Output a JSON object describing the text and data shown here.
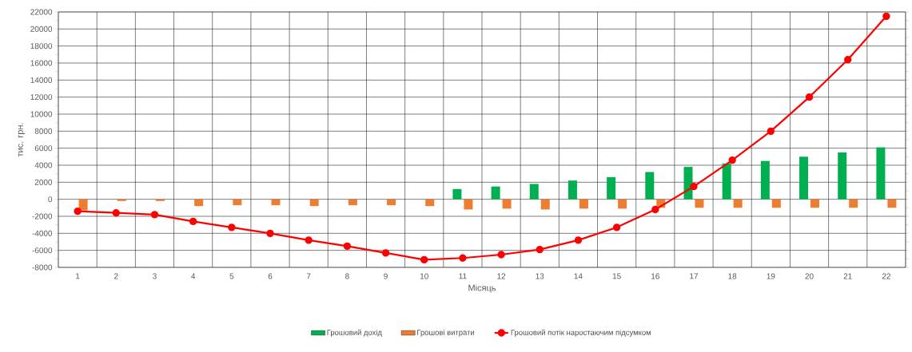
{
  "chart_data": {
    "type": "bar",
    "xlabel": "Місяць",
    "ylabel": "тис. грн.",
    "categories": [
      "1",
      "2",
      "3",
      "4",
      "5",
      "6",
      "7",
      "8",
      "9",
      "10",
      "11",
      "12",
      "13",
      "14",
      "15",
      "16",
      "17",
      "18",
      "19",
      "20",
      "21",
      "22"
    ],
    "series": [
      {
        "name": "Грошовий дохід",
        "color": "#00b050",
        "values": [
          0,
          0,
          0,
          0,
          0,
          0,
          0,
          0,
          0,
          0,
          1200,
          1500,
          1800,
          2200,
          2600,
          3200,
          3800,
          4200,
          4500,
          5000,
          5500,
          6100
        ]
      },
      {
        "name": "Грошові витрати",
        "color": "#ed7d31",
        "values": [
          -1300,
          -200,
          -200,
          -800,
          -700,
          -700,
          -800,
          -700,
          -700,
          -800,
          -1200,
          -1100,
          -1200,
          -1100,
          -1100,
          -1000,
          -1000,
          -1000,
          -1000,
          -1000,
          -1000,
          -1000
        ]
      },
      {
        "name": "Грошовий потік наростаючим підсумком",
        "type": "line",
        "color": "#ff0000",
        "marker": "circle",
        "line_style": "solid",
        "values": [
          -1400,
          -1600,
          -1800,
          -2600,
          -3300,
          -4000,
          -4800,
          -5500,
          -6300,
          -7100,
          -6900,
          -6500,
          -5900,
          -4800,
          -3300,
          -1200,
          1500,
          4600,
          8000,
          12000,
          16400,
          21500
        ]
      }
    ],
    "ylim": [
      -8000,
      22000
    ],
    "yticks": [
      -8000,
      {
        "value": -7000,
        "label": null
      },
      -6000,
      {
        "value": -5000,
        "label": null
      },
      -4000,
      {
        "value": -3000,
        "label": null
      },
      -2000,
      {
        "value": -1000,
        "label": null
      },
      0,
      {
        "value": 1000,
        "label": null
      },
      2000,
      {
        "value": 3000,
        "label": null
      },
      4000,
      {
        "value": 5000,
        "label": null
      },
      6000,
      {
        "value": 7000,
        "label": null
      },
      8000,
      {
        "value": 9000,
        "label": null
      },
      10000,
      {
        "value": 11000,
        "label": null
      },
      12000,
      {
        "value": 13000,
        "label": null
      },
      14000,
      {
        "value": 15000,
        "label": null
      },
      16000,
      {
        "value": 17000,
        "label": null
      },
      18000,
      {
        "value": 19000,
        "label": null
      },
      20000,
      {
        "value": 21000,
        "label": null
      },
      22000
    ],
    "grid": true,
    "legend": "bottom"
  }
}
